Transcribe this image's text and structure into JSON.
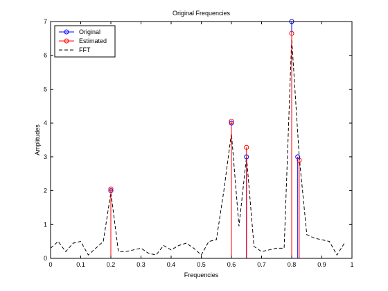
{
  "chart_data": {
    "type": "line",
    "title": "Original Frequencies",
    "xlabel": "Frequencies",
    "ylabel": "Amplitudes",
    "xlim": [
      0,
      1
    ],
    "ylim": [
      0,
      7
    ],
    "xticks": [
      0,
      0.1,
      0.2,
      0.3,
      0.4,
      0.5,
      0.6,
      0.7,
      0.8,
      0.9,
      1
    ],
    "xtick_labels": [
      "0",
      "0.1",
      "0.2",
      "0.3",
      "0.4",
      "0.5",
      "0.6",
      "0.7",
      "0.8",
      "0.9",
      "1"
    ],
    "yticks": [
      0,
      1,
      2,
      3,
      4,
      5,
      6,
      7
    ],
    "ytick_labels": [
      "0",
      "1",
      "2",
      "3",
      "4",
      "5",
      "6",
      "7"
    ],
    "grid": false,
    "legend_position": "top-left",
    "series": [
      {
        "name": "Original",
        "style": "stem",
        "color": "#0000ff",
        "x": [
          0.2,
          0.6,
          0.65,
          0.8,
          0.82
        ],
        "y": [
          2.0,
          4.0,
          3.0,
          7.0,
          3.0
        ]
      },
      {
        "name": "Estimated",
        "style": "stem",
        "color": "#ff0000",
        "x": [
          0.2,
          0.6,
          0.65,
          0.8,
          0.825
        ],
        "y": [
          2.05,
          4.05,
          3.28,
          6.65,
          2.9
        ]
      },
      {
        "name": "FFT",
        "style": "dashed-line",
        "color": "#000000",
        "x": [
          0,
          0.025,
          0.05,
          0.075,
          0.1,
          0.125,
          0.15,
          0.175,
          0.2,
          0.225,
          0.25,
          0.275,
          0.3,
          0.325,
          0.35,
          0.375,
          0.4,
          0.425,
          0.45,
          0.475,
          0.5,
          0.525,
          0.55,
          0.575,
          0.6,
          0.625,
          0.65,
          0.675,
          0.7,
          0.725,
          0.75,
          0.775,
          0.8,
          0.825,
          0.85,
          0.875,
          0.9,
          0.925,
          0.95,
          0.975
        ],
        "y": [
          0.3,
          0.5,
          0.2,
          0.45,
          0.5,
          0.1,
          0.3,
          0.5,
          1.95,
          0.2,
          0.2,
          0.25,
          0.3,
          0.15,
          0.1,
          0.38,
          0.25,
          0.38,
          0.45,
          0.3,
          0.1,
          0.5,
          0.55,
          2.0,
          3.7,
          0.95,
          3.0,
          0.35,
          0.2,
          0.25,
          0.3,
          0.3,
          6.5,
          3.0,
          0.7,
          0.6,
          0.55,
          0.5,
          0.1,
          0.45
        ]
      }
    ]
  }
}
